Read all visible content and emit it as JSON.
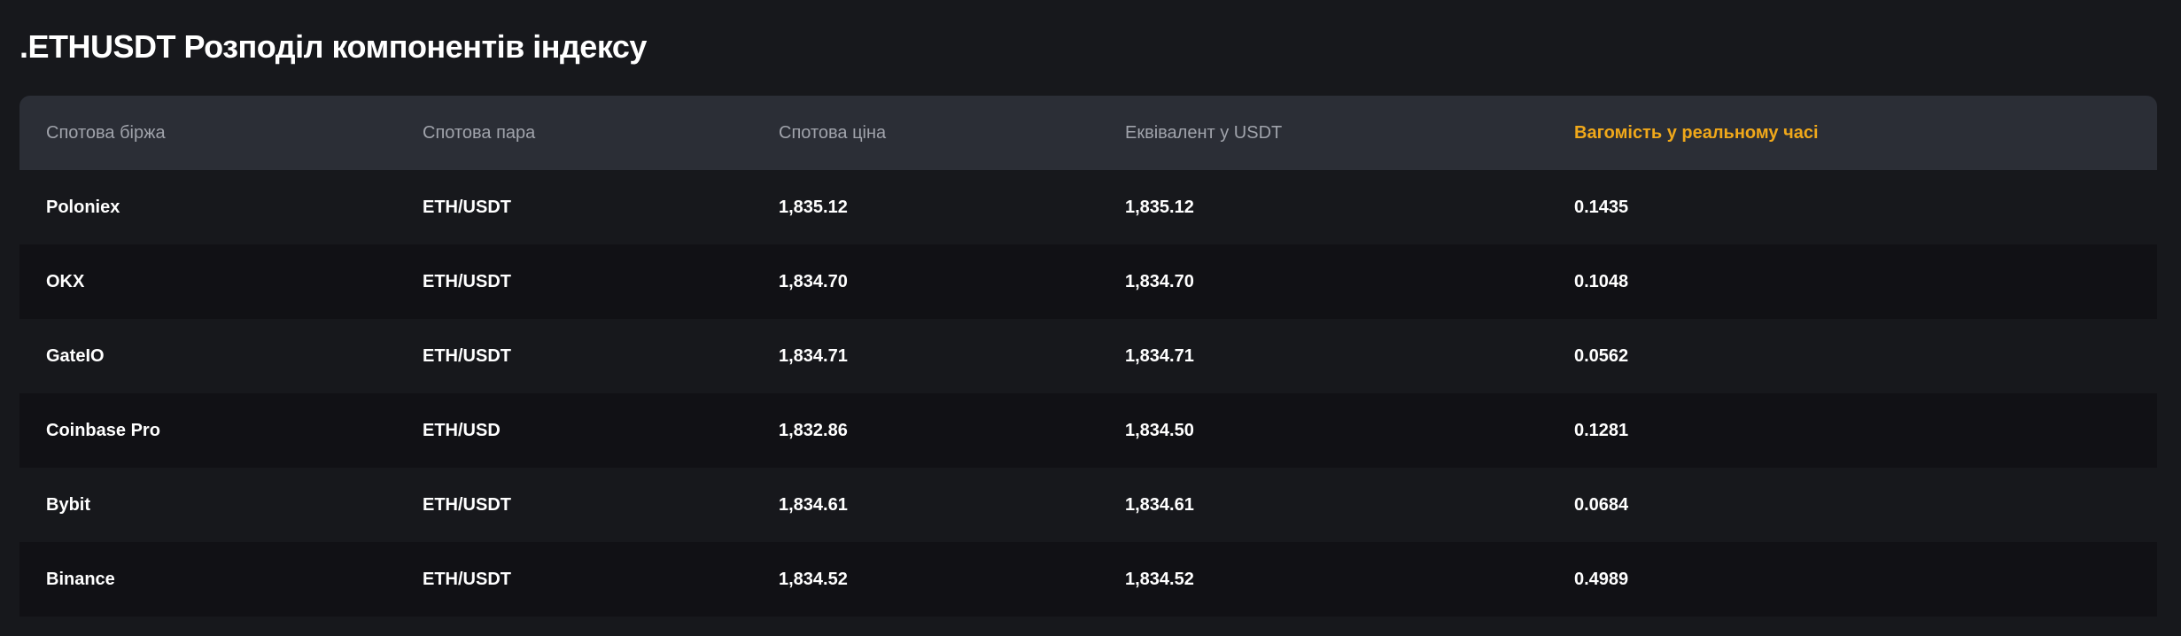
{
  "title": ".ETHUSDT Розподіл компонентів індексу",
  "accent_color": "#f0a81a",
  "table": {
    "columns": [
      "Спотова біржа",
      "Спотова пара",
      "Спотова ціна",
      "Еквівалент у USDT",
      "Вагомість у реальному часі"
    ],
    "rows": [
      [
        "Poloniex",
        "ETH/USDT",
        "1,835.12",
        "1,835.12",
        "0.1435"
      ],
      [
        "OKX",
        "ETH/USDT",
        "1,834.70",
        "1,834.70",
        "0.1048"
      ],
      [
        "GateIO",
        "ETH/USDT",
        "1,834.71",
        "1,834.71",
        "0.0562"
      ],
      [
        "Coinbase Pro",
        "ETH/USD",
        "1,832.86",
        "1,834.50",
        "0.1281"
      ],
      [
        "Bybit",
        "ETH/USDT",
        "1,834.61",
        "1,834.61",
        "0.0684"
      ],
      [
        "Binance",
        "ETH/USDT",
        "1,834.52",
        "1,834.52",
        "0.4989"
      ]
    ]
  }
}
